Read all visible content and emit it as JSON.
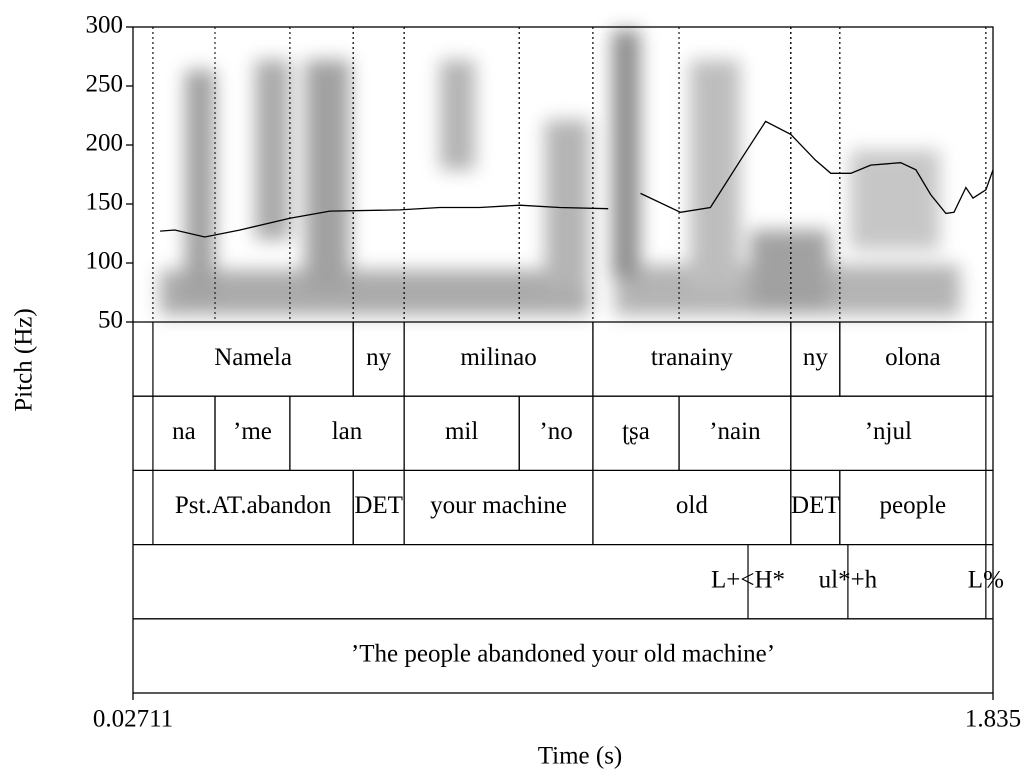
{
  "chart_data": {
    "type": "line",
    "xlabel": "Time (s)",
    "ylabel": "Pitch (Hz)",
    "xlim": [
      0.02711,
      1.835
    ],
    "xticks": [
      0.02711,
      1.835
    ],
    "ylim": [
      50,
      300
    ],
    "yticks": [
      50,
      100,
      150,
      200,
      250,
      300
    ],
    "color": "#000000",
    "x": [
      0.084,
      0.115,
      0.178,
      0.252,
      0.357,
      0.441,
      0.588,
      0.672,
      0.756,
      0.84,
      0.924,
      1.026,
      1.06,
      1.094,
      1.178,
      1.241,
      1.304,
      1.357,
      1.41,
      1.462,
      1.494,
      1.536,
      1.578,
      1.641,
      1.673,
      1.704,
      1.736,
      1.753,
      1.778,
      1.793,
      1.82,
      1.835
    ],
    "values": [
      127,
      128,
      122,
      128,
      138,
      144,
      145,
      147,
      147,
      149,
      147,
      146,
      null,
      159,
      143,
      147,
      187,
      220,
      209,
      187,
      176,
      176,
      183,
      185,
      179,
      158,
      142,
      143,
      164,
      155,
      162,
      179
    ],
    "tiers": [
      {
        "intervals": [
          {
            "label": "Namela",
            "start": 0.069,
            "end": 0.49
          },
          {
            "label": "ny",
            "start": 0.49,
            "end": 0.597
          },
          {
            "label": "milinao",
            "start": 0.597,
            "end": 0.994
          },
          {
            "label": "tranainy",
            "start": 0.994,
            "end": 1.41
          },
          {
            "label": "ny",
            "start": 1.41,
            "end": 1.513
          },
          {
            "label": "olona",
            "start": 1.513,
            "end": 1.82
          }
        ]
      },
      {
        "intervals": [
          {
            "label": "na",
            "start": 0.069,
            "end": 0.1995
          },
          {
            "label": "’me",
            "start": 0.1995,
            "end": 0.357
          },
          {
            "label": "lan",
            "start": 0.357,
            "end": 0.597
          },
          {
            "label": "mil",
            "start": 0.597,
            "end": 0.839
          },
          {
            "label": "’no",
            "start": 0.839,
            "end": 0.994
          },
          {
            "label": "ʈʂa",
            "start": 0.994,
            "end": 1.175
          },
          {
            "label": "’nain",
            "start": 1.175,
            "end": 1.41
          },
          {
            "label": "’njul",
            "start": 1.41,
            "end": 1.82
          }
        ]
      },
      {
        "intervals": [
          {
            "label": "Pst.AT.abandon",
            "start": 0.069,
            "end": 0.49
          },
          {
            "label": "DET",
            "start": 0.49,
            "end": 0.597
          },
          {
            "label": "your machine",
            "start": 0.597,
            "end": 0.994
          },
          {
            "label": "old",
            "start": 0.994,
            "end": 1.41
          },
          {
            "label": "DET",
            "start": 1.41,
            "end": 1.513
          },
          {
            "label": "people",
            "start": 1.513,
            "end": 1.82
          }
        ]
      },
      {
        "points": [
          {
            "label": "L+<H*",
            "time": 1.32
          },
          {
            "label": "ul*+h",
            "time": 1.53
          },
          {
            "label": "L%",
            "time": 1.82
          }
        ]
      },
      {
        "intervals": [
          {
            "label": "’The people abandoned your old machine’"
          }
        ]
      }
    ]
  }
}
